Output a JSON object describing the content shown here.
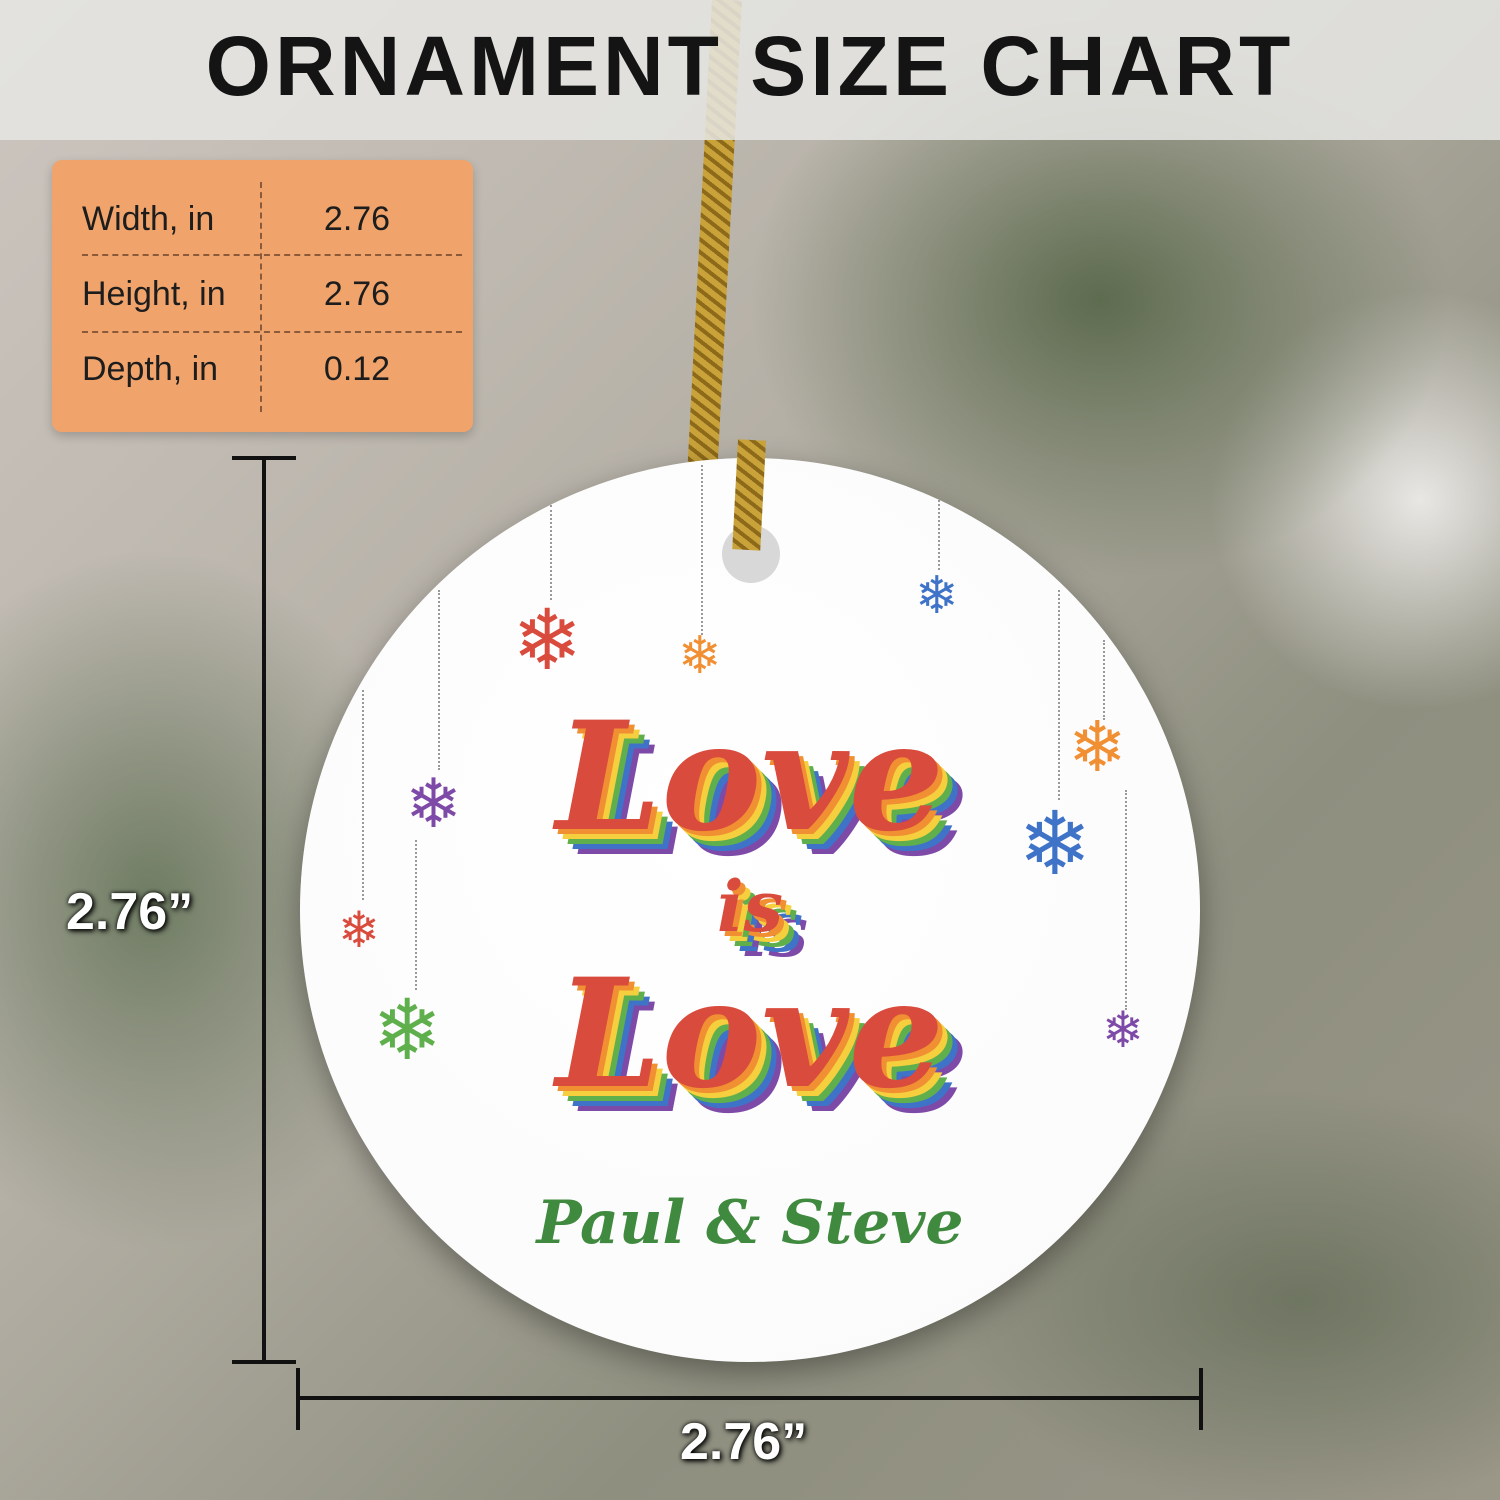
{
  "header": {
    "title": "ORNAMENT SIZE CHART"
  },
  "size_table": {
    "rows": [
      {
        "label": "Width, in",
        "value": "2.76"
      },
      {
        "label": "Height, in",
        "value": "2.76"
      },
      {
        "label": "Depth, in",
        "value": "0.12"
      }
    ]
  },
  "dimensions": {
    "height_label": "2.76”",
    "width_label": "2.76”"
  },
  "ornament": {
    "line1": "Love",
    "line2": "is",
    "line3": "Love",
    "names": "Paul & Steve"
  },
  "colors": {
    "table_bg": "#f0a46c",
    "heading_text": "#d94b3c",
    "names_text": "#3f8a3e"
  }
}
